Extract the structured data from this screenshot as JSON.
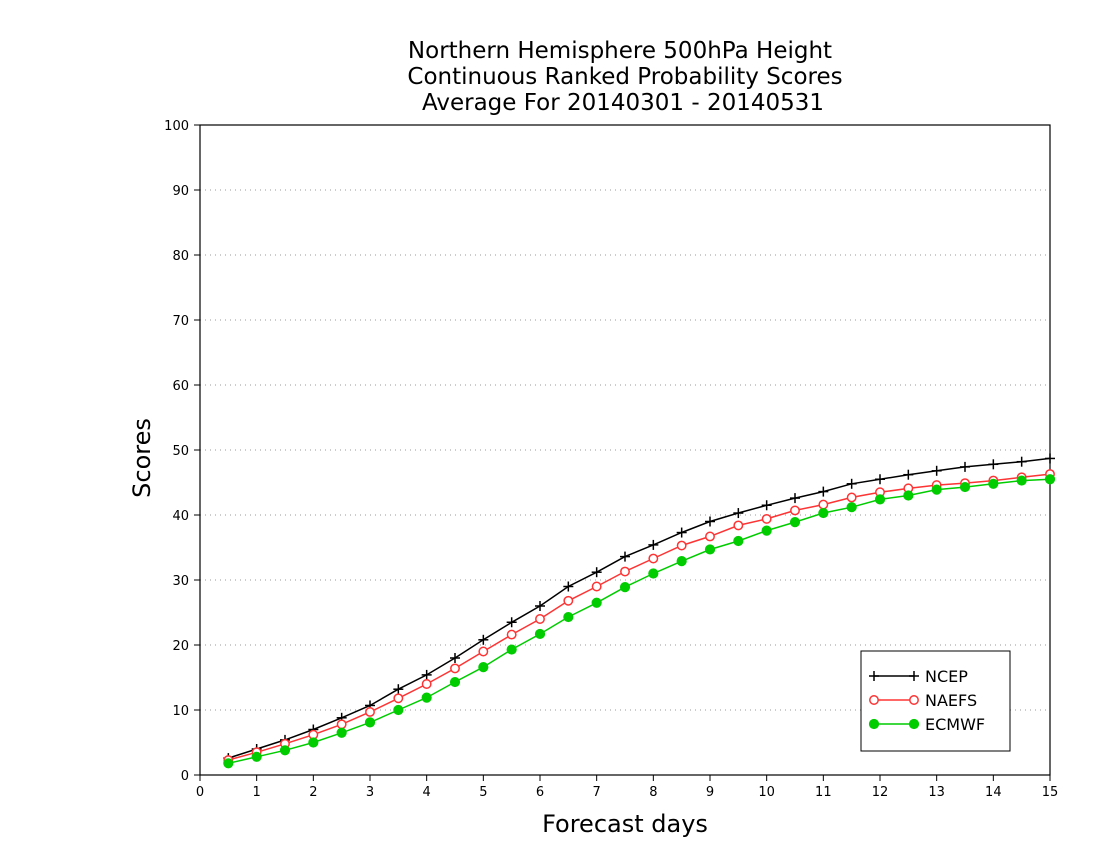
{
  "chart_data": {
    "type": "line",
    "title": [
      "Northern Hemisphere 500hPa Height",
      "Continuous Ranked Probability Scores",
      "Average For 20140301 - 20140531"
    ],
    "xlabel": "Forecast days",
    "ylabel": "Scores",
    "xlim": [
      0,
      15
    ],
    "ylim": [
      0,
      100
    ],
    "xticks": [
      "0",
      "1",
      "2",
      "3",
      "4",
      "5",
      "6",
      "7",
      "8",
      "9",
      "10",
      "11",
      "12",
      "13",
      "14",
      "15"
    ],
    "yticks": [
      "0",
      "10",
      "20",
      "30",
      "40",
      "50",
      "60",
      "70",
      "80",
      "90",
      "100"
    ],
    "grid": "horizontal dotted",
    "legend_position": "bottom-right",
    "x": [
      0.5,
      1,
      1.5,
      2,
      2.5,
      3,
      3.5,
      4,
      4.5,
      5,
      5.5,
      6,
      6.5,
      7,
      7.5,
      8,
      8.5,
      9,
      9.5,
      10,
      10.5,
      11,
      11.5,
      12,
      12.5,
      13,
      13.5,
      14,
      14.5,
      15
    ],
    "series": [
      {
        "name": "NCEP",
        "color": "#000000",
        "marker": "plus",
        "values": [
          2.6,
          4.0,
          5.4,
          7.0,
          8.8,
          10.7,
          13.2,
          15.4,
          18.0,
          20.8,
          23.5,
          26.0,
          29.0,
          31.2,
          33.6,
          35.4,
          37.3,
          39.0,
          40.3,
          41.5,
          42.6,
          43.6,
          44.8,
          45.5,
          46.2,
          46.8,
          47.4,
          47.8,
          48.2,
          48.7
        ]
      },
      {
        "name": "NAEFS",
        "color": "#ff3333",
        "marker": "open-circle",
        "values": [
          2.3,
          3.5,
          4.8,
          6.2,
          7.8,
          9.7,
          11.8,
          14.0,
          16.4,
          19.0,
          21.6,
          24.0,
          26.8,
          29.0,
          31.3,
          33.3,
          35.3,
          36.7,
          38.4,
          39.4,
          40.7,
          41.6,
          42.7,
          43.5,
          44.1,
          44.6,
          44.9,
          45.3,
          45.8,
          46.3
        ]
      },
      {
        "name": "ECMWF",
        "color": "#00cc00",
        "marker": "filled-circle",
        "values": [
          1.8,
          2.8,
          3.8,
          5.0,
          6.5,
          8.1,
          10.0,
          11.9,
          14.3,
          16.6,
          19.3,
          21.7,
          24.3,
          26.5,
          28.9,
          31.0,
          32.9,
          34.7,
          36.0,
          37.6,
          38.9,
          40.3,
          41.2,
          42.4,
          43.0,
          43.9,
          44.3,
          44.8,
          45.3,
          45.5
        ]
      }
    ]
  }
}
